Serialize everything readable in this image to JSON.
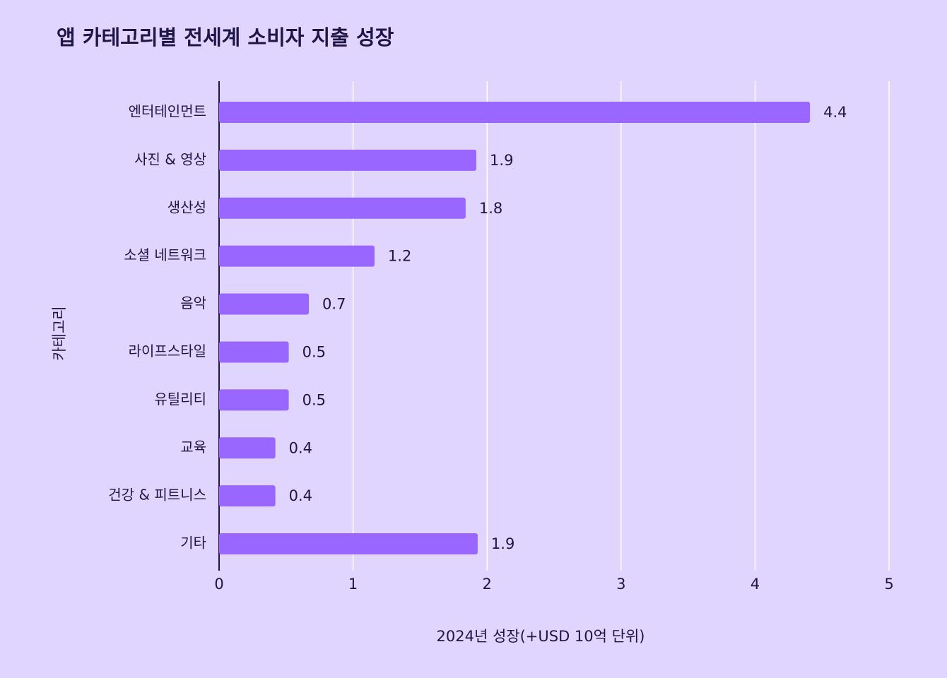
{
  "chart_data": {
    "type": "bar",
    "orientation": "horizontal",
    "title": "앱 카테고리별 전세계 소비자 지출 성장",
    "x_label": "2024년 성장(+USD 10억 단위)",
    "y_label": "카테고리",
    "categories": [
      "엔터테인먼트",
      "사진 & 영상",
      "생산성",
      "소셜 네트워크",
      "음악",
      "라이프스타일",
      "유틸리티",
      "교육",
      "건강 & 피트니스",
      "기타"
    ],
    "values": [
      4.41,
      1.92,
      1.84,
      1.16,
      0.67,
      0.52,
      0.52,
      0.42,
      0.42,
      1.93
    ],
    "value_labels": [
      "4.4",
      "1.9",
      "1.8",
      "1.2",
      "0.7",
      "0.5",
      "0.5",
      "0.4",
      "0.4",
      "1.9"
    ],
    "color": "#9966ff",
    "xlim": [
      0,
      5
    ],
    "xticks": [
      0,
      1,
      2,
      3,
      4,
      5
    ],
    "grid": true
  }
}
